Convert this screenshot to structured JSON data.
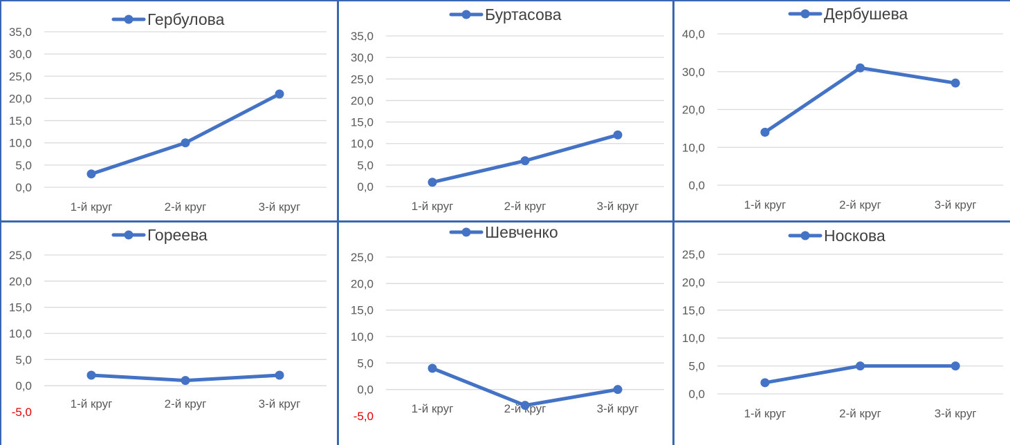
{
  "line_color": "#4472c4",
  "negative_tick_color": "#e00000",
  "chart_data": [
    {
      "type": "line",
      "title": "",
      "xlabel": "",
      "ylabel": "",
      "categories": [
        "1-й круг",
        "2-й круг",
        "3-й круг"
      ],
      "series": [
        {
          "name": "Гербулова",
          "values": [
            3,
            10,
            21
          ]
        }
      ],
      "ylim": [
        0,
        35
      ],
      "ytick_step": 5,
      "yticks": [
        "0,0",
        "5,0",
        "10,0",
        "15,0",
        "20,0",
        "25,0",
        "30,0",
        "35,0"
      ],
      "grid": true,
      "legend": "top"
    },
    {
      "type": "line",
      "title": "",
      "xlabel": "",
      "ylabel": "",
      "categories": [
        "1-й круг",
        "2-й круг",
        "3-й круг"
      ],
      "series": [
        {
          "name": "Буртасова",
          "values": [
            1,
            6,
            12
          ]
        }
      ],
      "ylim": [
        0,
        35
      ],
      "ytick_step": 5,
      "yticks": [
        "0,0",
        "5,0",
        "10,0",
        "15,0",
        "20,0",
        "25,0",
        "30,0",
        "35,0"
      ],
      "grid": true,
      "legend": "top"
    },
    {
      "type": "line",
      "title": "",
      "xlabel": "",
      "ylabel": "",
      "categories": [
        "1-й круг",
        "2-й круг",
        "3-й круг"
      ],
      "series": [
        {
          "name": "Дербушева",
          "values": [
            14,
            31,
            27
          ]
        }
      ],
      "ylim": [
        0,
        40
      ],
      "ytick_step": 10,
      "yticks": [
        "0,0",
        "10,0",
        "20,0",
        "30,0",
        "40,0"
      ],
      "grid": true,
      "legend": "top"
    },
    {
      "type": "line",
      "title": "",
      "xlabel": "",
      "ylabel": "",
      "categories": [
        "1-й круг",
        "2-й круг",
        "3-й круг"
      ],
      "series": [
        {
          "name": "Гореева",
          "values": [
            2,
            1,
            2
          ]
        }
      ],
      "ylim": [
        -5,
        25
      ],
      "ytick_step": 5,
      "yticks": [
        "-5,0",
        "0,0",
        "5,0",
        "10,0",
        "15,0",
        "20,0",
        "25,0"
      ],
      "grid": true,
      "legend": "top"
    },
    {
      "type": "line",
      "title": "",
      "xlabel": "",
      "ylabel": "",
      "categories": [
        "1-й круг",
        "2-й круг",
        "3-й круг"
      ],
      "series": [
        {
          "name": "Шевченко",
          "values": [
            4,
            -3,
            0
          ]
        }
      ],
      "ylim": [
        -5,
        25
      ],
      "ytick_step": 5,
      "yticks": [
        "-5,0",
        "0,0",
        "5,0",
        "10,0",
        "15,0",
        "20,0",
        "25,0"
      ],
      "grid": true,
      "legend": "top"
    },
    {
      "type": "line",
      "title": "",
      "xlabel": "",
      "ylabel": "",
      "categories": [
        "1-й круг",
        "2-й круг",
        "3-й круг"
      ],
      "series": [
        {
          "name": "Носкова",
          "values": [
            2,
            5,
            5
          ]
        }
      ],
      "ylim": [
        0,
        25
      ],
      "ytick_step": 5,
      "yticks": [
        "0,0",
        "5,0",
        "10,0",
        "15,0",
        "20,0",
        "25,0"
      ],
      "grid": true,
      "legend": "top"
    }
  ]
}
